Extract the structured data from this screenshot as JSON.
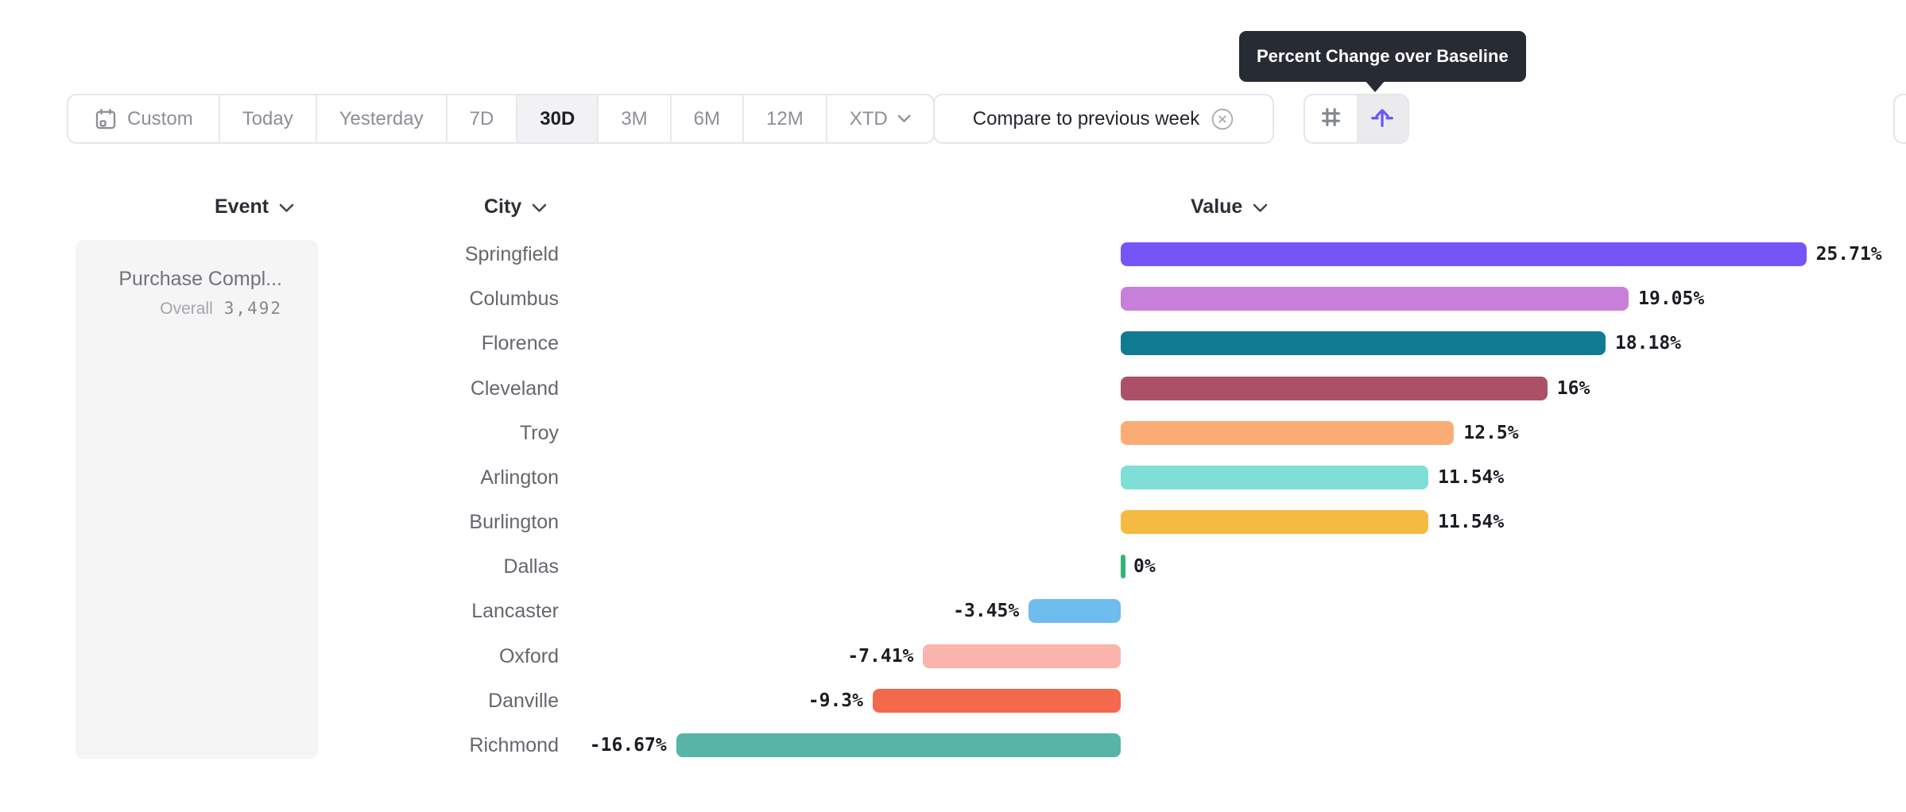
{
  "tooltip": {
    "text": "Percent Change over Baseline"
  },
  "toolbar": {
    "presets": [
      {
        "label": "Custom",
        "icon": "calendar-icon"
      },
      {
        "label": "Today"
      },
      {
        "label": "Yesterday"
      },
      {
        "label": "7D"
      },
      {
        "label": "30D",
        "selected": true
      },
      {
        "label": "3M"
      },
      {
        "label": "6M"
      },
      {
        "label": "12M"
      },
      {
        "label": "XTD",
        "chevron": true
      }
    ],
    "selected_preset": "30D",
    "compare_label": "Compare to previous week",
    "view_toggle": [
      {
        "name": "grid-view",
        "icon": "hash-icon",
        "selected": false
      },
      {
        "name": "percent-change-view",
        "icon": "arrow-up-baseline-icon",
        "selected": true
      }
    ]
  },
  "columns": {
    "event": "Event",
    "city": "City",
    "value": "Value"
  },
  "event_card": {
    "name": "Purchase Compl...",
    "overall_label": "Overall",
    "overall_value": "3,492"
  },
  "chart_data": {
    "type": "bar",
    "orientation": "horizontal",
    "unit": "%",
    "baseline": 0,
    "xlim": [
      -16.67,
      25.71
    ],
    "categories": [
      "Springfield",
      "Columbus",
      "Florence",
      "Cleveland",
      "Troy",
      "Arlington",
      "Burlington",
      "Dallas",
      "Lancaster",
      "Oxford",
      "Danville",
      "Richmond"
    ],
    "values": [
      25.71,
      19.05,
      18.18,
      16,
      12.5,
      11.54,
      11.54,
      0,
      -3.45,
      -7.41,
      -9.3,
      -16.67
    ],
    "labels": [
      "25.71%",
      "19.05%",
      "18.18%",
      "16%",
      "12.5%",
      "11.54%",
      "11.54%",
      "0%",
      "-3.45%",
      "-7.41%",
      "-9.3%",
      "-16.67%"
    ],
    "colors": [
      "#7655F8",
      "#C77FD9",
      "#117B93",
      "#AC5068",
      "#FBAB76",
      "#7FDFD7",
      "#F5BA42",
      "#35B575",
      "#6FBCEE",
      "#FAB4AB",
      "#F4694C",
      "#57B4A6"
    ]
  },
  "accent_colors": {
    "selected_icon": "#6C5AF5",
    "tooltip_bg": "#272B34",
    "selected_segment_bg": "#F2F2F4"
  }
}
